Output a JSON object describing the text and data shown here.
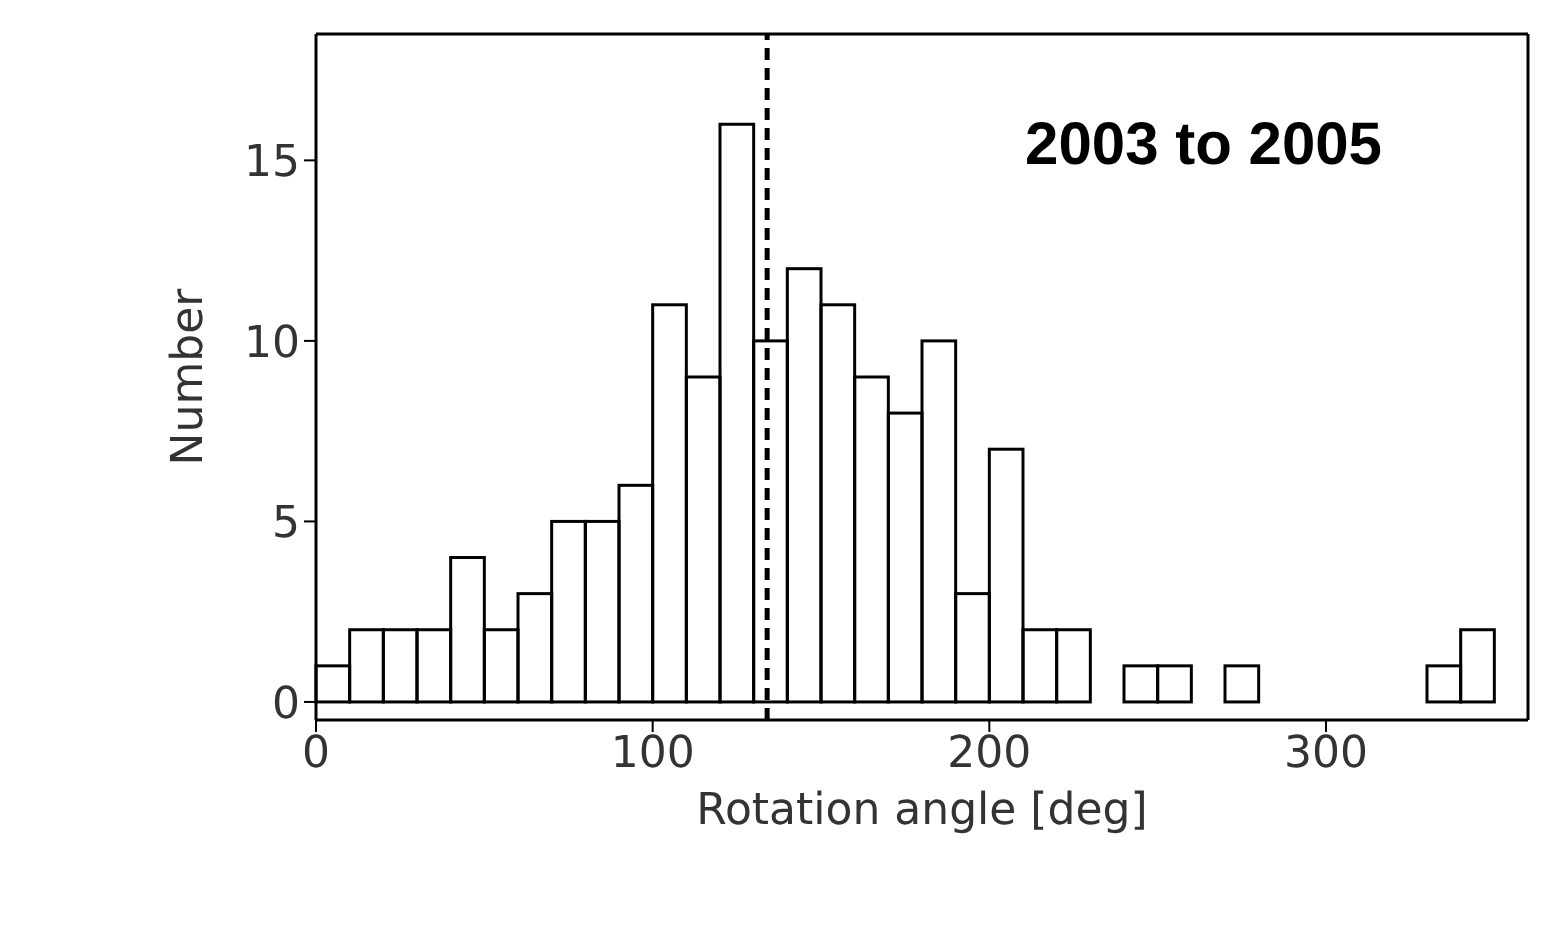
{
  "chart_data": {
    "type": "histogram",
    "xlabel": "Rotation angle [deg]",
    "ylabel": "Number",
    "bins": [
      0,
      10,
      20,
      30,
      40,
      50,
      60,
      70,
      80,
      90,
      100,
      110,
      120,
      130,
      140,
      150,
      160,
      170,
      180,
      190,
      200,
      210,
      220,
      230,
      240,
      250,
      260,
      270,
      280,
      290,
      300,
      310,
      320,
      330,
      340,
      350,
      360
    ],
    "values": [
      1,
      2,
      2,
      2,
      4,
      2,
      3,
      5,
      5,
      6,
      11,
      9,
      16,
      10,
      12,
      11,
      9,
      8,
      10,
      3,
      7,
      2,
      2,
      0,
      1,
      1,
      0,
      1,
      0,
      0,
      0,
      0,
      0,
      1,
      2,
      0
    ],
    "color": "#000000",
    "xlim": [
      0,
      360
    ],
    "xticks": [
      0,
      100,
      200,
      300
    ],
    "ylim": [
      -0.5,
      18.5
    ],
    "yticks": [
      0,
      5,
      10,
      15
    ],
    "ref_lines": [
      {
        "axis": "x",
        "value": 134,
        "color": "#000000",
        "line_style": "dashed"
      }
    ],
    "annotations": [
      "2003 to 2005"
    ]
  }
}
